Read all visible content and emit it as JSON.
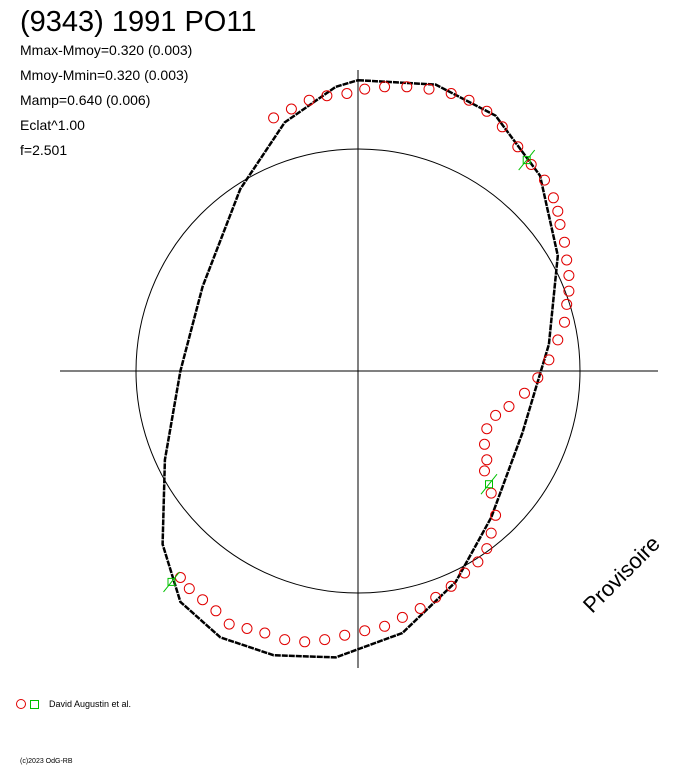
{
  "title": "(9343) 1991 PO11",
  "stats": [
    "Mmax-Mmoy=0.320 (0.003)",
    "Mmoy-Mmin=0.320 (0.003)",
    "Mamp=0.640 (0.006)",
    "Eclat^1.00",
    "f=2.501"
  ],
  "watermark": "Provisoire",
  "legend": {
    "label": "David Augustin et al."
  },
  "copyright": "(c)2023 OdG-RB",
  "colors": {
    "observations": "#e00000",
    "secondary": "#00c000",
    "model": "#000000"
  },
  "chart_data": {
    "type": "scatter",
    "reference_circle_radius": 1.0,
    "xlim": [
      -1.35,
      1.35
    ],
    "ylim": [
      -1.35,
      1.35
    ],
    "model_curve": [
      [
        0.0,
        1.31
      ],
      [
        0.35,
        1.29
      ],
      [
        0.62,
        1.15
      ],
      [
        0.82,
        0.88
      ],
      [
        0.9,
        0.52
      ],
      [
        0.86,
        0.12
      ],
      [
        0.74,
        -0.28
      ],
      [
        0.6,
        -0.66
      ],
      [
        0.44,
        -0.95
      ],
      [
        0.2,
        -1.18
      ],
      [
        -0.1,
        -1.29
      ],
      [
        -0.38,
        -1.28
      ],
      [
        -0.62,
        -1.2
      ],
      [
        -0.8,
        -1.04
      ],
      [
        -0.88,
        -0.78
      ],
      [
        -0.87,
        -0.4
      ],
      [
        -0.8,
        0.0
      ],
      [
        -0.7,
        0.38
      ],
      [
        -0.53,
        0.82
      ],
      [
        -0.33,
        1.12
      ],
      [
        -0.1,
        1.28
      ],
      [
        0.0,
        1.31
      ]
    ],
    "observations": [
      [
        -0.38,
        1.14
      ],
      [
        -0.3,
        1.18
      ],
      [
        -0.22,
        1.22
      ],
      [
        -0.14,
        1.24
      ],
      [
        -0.05,
        1.25
      ],
      [
        0.03,
        1.27
      ],
      [
        0.12,
        1.28
      ],
      [
        0.22,
        1.28
      ],
      [
        0.32,
        1.27
      ],
      [
        0.42,
        1.25
      ],
      [
        0.5,
        1.22
      ],
      [
        0.58,
        1.17
      ],
      [
        0.65,
        1.1
      ],
      [
        0.72,
        1.01
      ],
      [
        0.78,
        0.93
      ],
      [
        0.84,
        0.86
      ],
      [
        0.88,
        0.78
      ],
      [
        0.9,
        0.72
      ],
      [
        0.91,
        0.66
      ],
      [
        0.93,
        0.58
      ],
      [
        0.94,
        0.5
      ],
      [
        0.95,
        0.43
      ],
      [
        0.95,
        0.36
      ],
      [
        0.94,
        0.3
      ],
      [
        0.93,
        0.22
      ],
      [
        0.9,
        0.14
      ],
      [
        0.86,
        0.05
      ],
      [
        0.81,
        -0.03
      ],
      [
        0.75,
        -0.1
      ],
      [
        0.68,
        -0.16
      ],
      [
        0.62,
        -0.2
      ],
      [
        0.58,
        -0.26
      ],
      [
        0.57,
        -0.33
      ],
      [
        0.58,
        -0.4
      ],
      [
        0.57,
        -0.45
      ],
      [
        0.6,
        -0.55
      ],
      [
        0.62,
        -0.65
      ],
      [
        0.6,
        -0.73
      ],
      [
        0.58,
        -0.8
      ],
      [
        0.54,
        -0.86
      ],
      [
        0.48,
        -0.91
      ],
      [
        0.42,
        -0.97
      ],
      [
        0.35,
        -1.02
      ],
      [
        0.28,
        -1.07
      ],
      [
        0.2,
        -1.11
      ],
      [
        0.12,
        -1.15
      ],
      [
        0.03,
        -1.17
      ],
      [
        -0.06,
        -1.19
      ],
      [
        -0.15,
        -1.21
      ],
      [
        -0.24,
        -1.22
      ],
      [
        -0.33,
        -1.21
      ],
      [
        -0.42,
        -1.18
      ],
      [
        -0.5,
        -1.16
      ],
      [
        -0.58,
        -1.14
      ],
      [
        -0.64,
        -1.08
      ],
      [
        -0.7,
        -1.03
      ],
      [
        -0.76,
        -0.98
      ],
      [
        -0.8,
        -0.93
      ]
    ],
    "secondary_points": [
      [
        0.76,
        0.95
      ],
      [
        0.59,
        -0.51
      ],
      [
        -0.84,
        -0.95
      ]
    ]
  }
}
